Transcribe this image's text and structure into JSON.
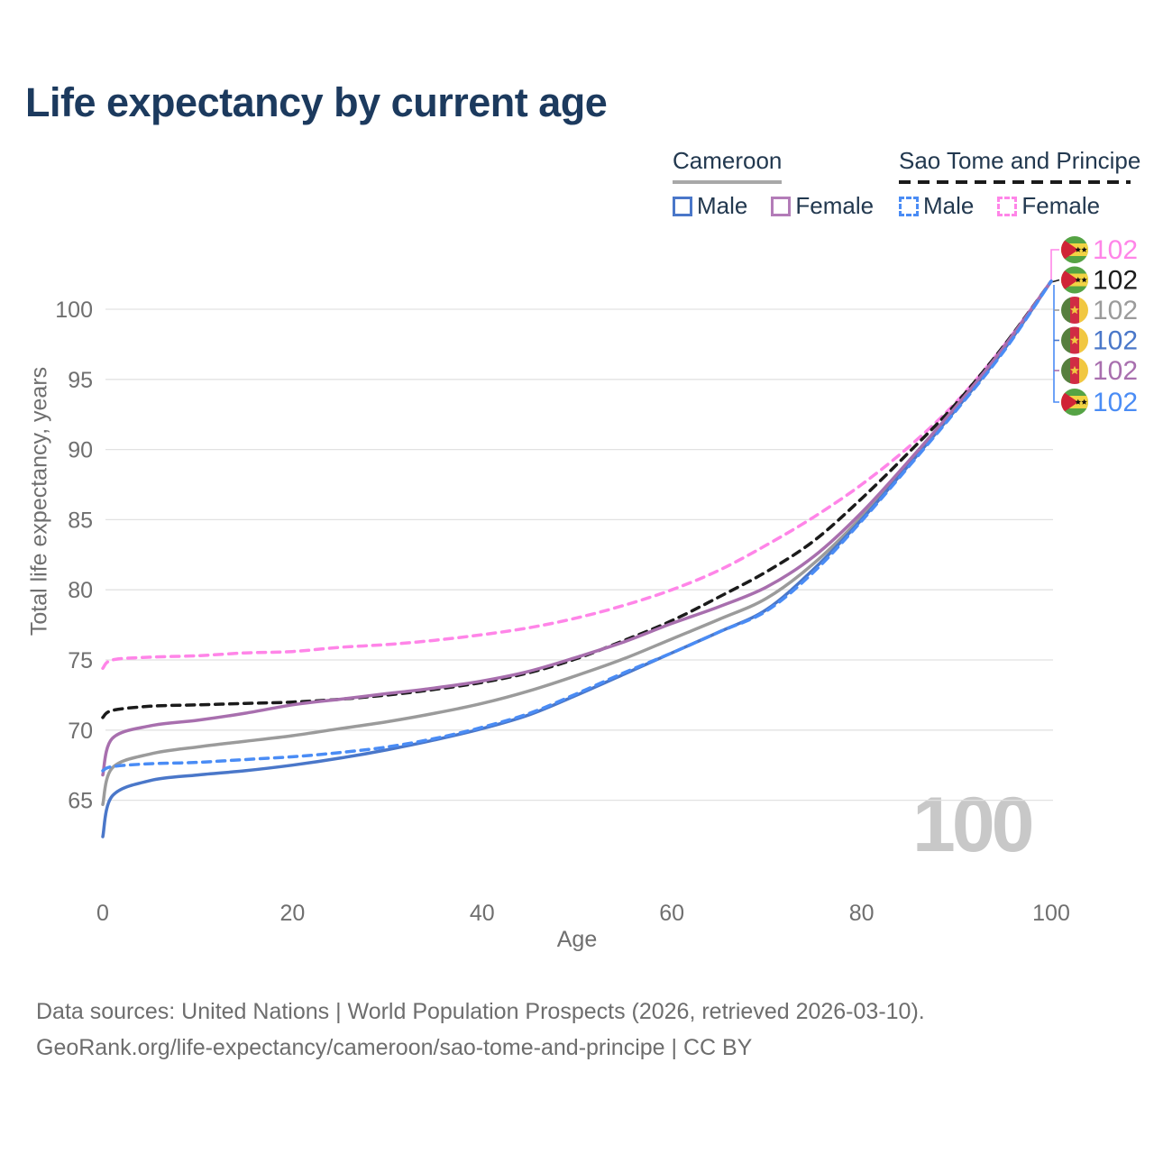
{
  "title": "Life expectancy by current age",
  "legend": {
    "groups": [
      {
        "label": "Cameroon",
        "line_style": "solid",
        "line_color": "#a8a8a8",
        "items": [
          {
            "label": "Male",
            "color": "#4a77c9",
            "dashed": false
          },
          {
            "label": "Female",
            "color": "#b37cb8",
            "dashed": false
          }
        ]
      },
      {
        "label": "Sao Tome and Principe",
        "line_style": "dashed",
        "line_color": "#1b1b1b",
        "items": [
          {
            "label": "Male",
            "color": "#4a8cf5",
            "dashed": true
          },
          {
            "label": "Female",
            "color": "#ff85e8",
            "dashed": true
          }
        ]
      }
    ]
  },
  "chart_data": {
    "type": "line",
    "title": "Life expectancy by current age",
    "xlabel": "Age",
    "ylabel": "Total life expectancy, years",
    "x_ticks": [
      0,
      20,
      40,
      60,
      80,
      100
    ],
    "y_ticks": [
      65,
      70,
      75,
      80,
      85,
      90,
      95,
      100
    ],
    "xlim": [
      0,
      100
    ],
    "ylim": [
      61,
      103
    ],
    "grid": "horizontal-only",
    "legend_position": "top-right",
    "watermark": "100",
    "ages": [
      0,
      1,
      5,
      10,
      15,
      20,
      25,
      30,
      35,
      40,
      45,
      50,
      55,
      60,
      65,
      70,
      75,
      80,
      85,
      90,
      95,
      100
    ],
    "series": [
      {
        "name": "Sao Tome and Principe Female",
        "country": "Sao Tome and Principe",
        "sex": "Female",
        "color": "#ff85e8",
        "dashed": true,
        "flag": "st",
        "end_label": "102",
        "values": [
          74.4,
          75.0,
          75.2,
          75.3,
          75.5,
          75.6,
          75.9,
          76.1,
          76.4,
          76.8,
          77.3,
          78.0,
          78.9,
          80.0,
          81.4,
          83.2,
          85.2,
          87.5,
          90.2,
          93.4,
          97.4,
          102
        ]
      },
      {
        "name": "Sao Tome and Principe",
        "country": "Sao Tome and Principe",
        "sex": "Both",
        "color": "#1b1b1b",
        "dashed": true,
        "flag": "st",
        "end_label": "102",
        "values": [
          70.9,
          71.4,
          71.7,
          71.8,
          71.9,
          72.0,
          72.2,
          72.5,
          72.9,
          73.4,
          74.1,
          75.1,
          76.4,
          77.8,
          79.5,
          81.3,
          83.5,
          86.5,
          89.8,
          93.3,
          97.4,
          102
        ]
      },
      {
        "name": "Cameroon",
        "country": "Cameroon",
        "sex": "Both",
        "color": "#9b9b9b",
        "dashed": false,
        "flag": "cm",
        "end_label": "102",
        "values": [
          64.7,
          67.3,
          68.3,
          68.8,
          69.2,
          69.6,
          70.1,
          70.6,
          71.2,
          71.9,
          72.8,
          73.9,
          75.1,
          76.5,
          77.9,
          79.4,
          81.9,
          85.2,
          89.1,
          93.0,
          97.2,
          102
        ]
      },
      {
        "name": "Cameroon Male",
        "country": "Cameroon",
        "sex": "Male",
        "color": "#4a77c9",
        "dashed": false,
        "flag": "cm",
        "end_label": "102",
        "values": [
          62.4,
          65.3,
          66.4,
          66.8,
          67.1,
          67.5,
          68.0,
          68.6,
          69.3,
          70.1,
          71.1,
          72.5,
          74.0,
          75.5,
          77.0,
          78.6,
          81.5,
          85.0,
          88.9,
          92.9,
          97.1,
          102
        ]
      },
      {
        "name": "Cameroon Female",
        "country": "Cameroon",
        "sex": "Female",
        "color": "#a86fae",
        "dashed": false,
        "flag": "cm",
        "end_label": "102",
        "values": [
          66.8,
          69.4,
          70.3,
          70.7,
          71.2,
          71.8,
          72.2,
          72.6,
          73.0,
          73.5,
          74.2,
          75.2,
          76.3,
          77.6,
          78.8,
          80.2,
          82.4,
          85.5,
          89.2,
          93.1,
          97.3,
          102
        ]
      },
      {
        "name": "Sao Tome and Principe Male",
        "country": "Sao Tome and Principe",
        "sex": "Male",
        "color": "#4a8cf5",
        "dashed": true,
        "flag": "st",
        "end_label": "102",
        "values": [
          67.1,
          67.4,
          67.6,
          67.7,
          67.9,
          68.1,
          68.4,
          68.8,
          69.4,
          70.2,
          71.2,
          72.6,
          74.1,
          75.5,
          77.0,
          78.5,
          81.3,
          84.9,
          88.8,
          92.8,
          97.0,
          102
        ]
      }
    ]
  },
  "footer": {
    "line1": "Data sources: United Nations | World Population Prospects (2026, retrieved 2026-03-10).",
    "line2": "GeoRank.org/life-expectancy/cameroon/sao-tome-and-principe | CC BY"
  }
}
